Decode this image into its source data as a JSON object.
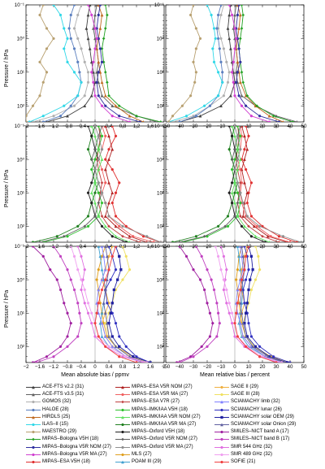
{
  "chart_data": {
    "type": "line",
    "rows": [
      {
        "name": "row-1"
      },
      {
        "name": "row-2"
      },
      {
        "name": "row-3"
      }
    ],
    "panels": [
      {
        "row": 0,
        "col": 0
      },
      {
        "row": 0,
        "col": 1
      },
      {
        "row": 1,
        "col": 0
      },
      {
        "row": 1,
        "col": 1
      },
      {
        "row": 2,
        "col": 0
      },
      {
        "row": 2,
        "col": 1
      }
    ],
    "xaxes": [
      {
        "label": "Mean absolute bias / ppmv",
        "xlim": [
          -2,
          2
        ],
        "ticks": [
          -2,
          -1.6,
          -1.2,
          -0.8,
          -0.4,
          0,
          0.4,
          0.8,
          1.2,
          1.6,
          2
        ],
        "tick_labels": [
          "−2",
          "−1.6",
          "−1.2",
          "−0.8",
          "−0.4",
          "0",
          "0.4",
          "0.8",
          "1.2",
          "1.6",
          "2"
        ]
      },
      {
        "label": "Mean relative bias / percent",
        "xlim": [
          -50,
          50
        ],
        "ticks": [
          -50,
          -40,
          -30,
          -20,
          -10,
          0,
          10,
          20,
          30,
          40,
          50
        ],
        "tick_labels": [
          "−50",
          "−40",
          "−30",
          "−20",
          "−10",
          "0",
          "10",
          "20",
          "30",
          "40",
          "50"
        ]
      }
    ],
    "yaxis": {
      "label": "Pressure / hPa",
      "scale": "log",
      "inverted": true,
      "ylim": [
        300,
        0.1
      ],
      "ticks": [
        0.1,
        1,
        10,
        100
      ],
      "tick_labels": [
        "10⁻¹",
        "10⁰",
        "10¹",
        "10²"
      ]
    },
    "pressure_levels": [
      0.1,
      0.2,
      0.5,
      1,
      2,
      5,
      10,
      20,
      50,
      100,
      200,
      300
    ],
    "series": [
      {
        "name": "ACE-FTS v2.2 (31)",
        "color": "#404040",
        "marker": "triangle",
        "row": 0,
        "abs": [
          -0.15,
          -0.2,
          -0.25,
          -0.2,
          -0.15,
          -0.1,
          -0.05,
          0,
          -0.1,
          -0.3,
          -0.8,
          -1.4
        ],
        "rel": [
          -3,
          -4,
          -5,
          -4,
          -3,
          -2,
          -1,
          0,
          -3,
          -10,
          -25,
          -40
        ]
      },
      {
        "name": "ACE-FTS v3.5 (31)",
        "color": "#606060",
        "marker": "triangle",
        "row": 0,
        "abs": [
          0.05,
          0,
          -0.05,
          0,
          0.05,
          0.1,
          0.05,
          0.1,
          0.2,
          0.5,
          1.2,
          1.8
        ],
        "rel": [
          1,
          0,
          -1,
          0,
          1,
          2,
          1,
          2,
          5,
          15,
          30,
          45
        ]
      },
      {
        "name": "GOMOS (32)",
        "color": "#b0b0b0",
        "marker": "circle",
        "row": 0,
        "abs": [
          -0.4,
          -0.5,
          -0.6,
          -0.5,
          -0.4,
          -0.3,
          -0.2,
          -0.2,
          -0.3,
          -0.6,
          -1.2,
          -1.8
        ],
        "rel": [
          -8,
          -10,
          -12,
          -10,
          -8,
          -6,
          -4,
          -5,
          -8,
          -18,
          -30,
          -45
        ]
      },
      {
        "name": "HALOE (28)",
        "color": "#5b7fbf",
        "marker": "circle",
        "row": 0,
        "abs": [
          -0.6,
          -0.7,
          -0.75,
          -0.7,
          -0.6,
          -0.5,
          -0.45,
          -0.4,
          -0.5,
          -0.7,
          -1.0,
          -1.5
        ],
        "rel": [
          -10,
          -12,
          -13,
          -12,
          -11,
          -10,
          -9,
          -9,
          -12,
          -18,
          -28,
          -40
        ]
      },
      {
        "name": "HIRDLS (25)",
        "color": "#c06a20",
        "marker": "triangle",
        "row": 0,
        "abs": [
          0.1,
          0.2,
          0.15,
          0.1,
          0.05,
          0.1,
          0.15,
          0.2,
          0.3,
          0.6,
          1.0,
          1.4
        ],
        "rel": [
          2,
          4,
          3,
          2,
          1,
          2,
          3,
          4,
          8,
          15,
          25,
          35
        ]
      },
      {
        "name": "ILAS–II (15)",
        "color": "#30d8e8",
        "marker": "circle",
        "row": 0,
        "abs": [
          -1.2,
          -1.0,
          -0.9,
          -0.8,
          -0.9,
          -0.8,
          -0.6,
          -0.4,
          -0.5,
          -0.9,
          -1.5,
          -1.9
        ],
        "rel": [
          -20,
          -17,
          -15,
          -14,
          -16,
          -15,
          -12,
          -9,
          -12,
          -22,
          -35,
          -48
        ]
      },
      {
        "name": "MAESTRO (29)",
        "color": "#b8a070",
        "marker": "circle",
        "row": 0,
        "abs": [
          -1.5,
          -1.6,
          -1.4,
          -1.2,
          -1.4,
          -1.6,
          -1.4,
          -1.5,
          -1.6,
          -1.8,
          -2.0,
          -2.0
        ],
        "rel": [
          -30,
          -32,
          -28,
          -25,
          -28,
          -30,
          -28,
          -29,
          -32,
          -38,
          -45,
          -48
        ]
      },
      {
        "name": "MIPAS–Bologna V5H (18)",
        "color": "#20a020",
        "marker": "diamond",
        "row": 0,
        "abs": [
          0.3,
          0.35,
          0.3,
          0.25,
          0.2,
          0.25,
          0.3,
          0.35,
          0.4,
          0.7,
          1.2,
          1.9
        ],
        "rel": [
          5,
          6,
          5,
          4,
          3,
          4,
          5,
          6,
          9,
          16,
          28,
          42
        ]
      },
      {
        "name": "MIPAS–Bologna V5R NOM (27)",
        "color": "#3030a0",
        "marker": "circle",
        "row": 0,
        "abs": [
          0.15,
          0.1,
          0.05,
          0.1,
          0.15,
          0.2,
          0.1,
          0.05,
          0.1,
          0.3,
          0.7,
          1.3
        ],
        "rel": [
          3,
          2,
          1,
          2,
          3,
          4,
          2,
          1,
          3,
          8,
          18,
          32
        ]
      },
      {
        "name": "MIPAS–Bologna V5R MA (27)",
        "color": "#d040d0",
        "marker": "circle",
        "row": 0,
        "abs": [
          -0.2,
          -0.1,
          0,
          0.05,
          0,
          -0.05,
          -0.1,
          -0.05,
          0,
          0.2,
          0.5,
          1.0
        ],
        "rel": [
          -4,
          -2,
          0,
          1,
          0,
          -1,
          -2,
          -1,
          0,
          5,
          12,
          25
        ]
      },
      {
        "name": "MIPAS–ESA V5H (18)",
        "color": "#e03030",
        "marker": "circle",
        "row": 1,
        "abs": [
          0.5,
          0.6,
          0.4,
          0.3,
          0.5,
          0.7,
          0.6,
          0.5,
          0.6,
          0.9,
          1.4,
          1.9
        ],
        "rel": [
          8,
          10,
          7,
          5,
          8,
          12,
          10,
          9,
          12,
          20,
          32,
          45
        ]
      },
      {
        "name": "MIPAS–ESA V5R NOM (27)",
        "color": "#b02020",
        "marker": "triangle",
        "row": 1,
        "abs": [
          0.3,
          0.4,
          0.5,
          0.4,
          0.3,
          0.4,
          0.5,
          0.4,
          0.3,
          0.6,
          1.0,
          1.5
        ],
        "rel": [
          5,
          7,
          9,
          7,
          5,
          7,
          9,
          7,
          6,
          14,
          24,
          38
        ]
      },
      {
        "name": "MIPAS–ESA V5R MA (27)",
        "color": "#f06060",
        "marker": "circle",
        "row": 1,
        "abs": [
          0.2,
          0.3,
          0.2,
          0.1,
          0.2,
          0.3,
          0.2,
          0.3,
          0.4,
          0.7,
          1.1,
          1.7
        ],
        "rel": [
          4,
          5,
          4,
          2,
          4,
          5,
          4,
          5,
          8,
          16,
          26,
          40
        ]
      },
      {
        "name": "MIPAS–ESA V7R (27)",
        "color": "#c04040",
        "marker": "diamond",
        "row": 1,
        "abs": [
          0.1,
          0.15,
          0.1,
          0.05,
          0.1,
          0.2,
          0.15,
          0.1,
          0.2,
          0.4,
          0.8,
          1.3
        ],
        "rel": [
          2,
          3,
          2,
          1,
          2,
          4,
          3,
          2,
          4,
          10,
          20,
          32
        ]
      },
      {
        "name": "MIPAS–IMK/IAA V5H (18)",
        "color": "#30c030",
        "marker": "circle",
        "row": 1,
        "abs": [
          0.1,
          0.2,
          0.1,
          0,
          -0.1,
          0,
          0.1,
          0.2,
          0.1,
          -0.2,
          -0.8,
          -1.5
        ],
        "rel": [
          2,
          4,
          2,
          0,
          -2,
          0,
          2,
          4,
          2,
          -5,
          -20,
          -38
        ]
      },
      {
        "name": "MIPAS–IMK/IAA V5R NOM (27)",
        "color": "#60e060",
        "marker": "triangle",
        "row": 1,
        "abs": [
          -0.1,
          0,
          0.1,
          0.2,
          0.1,
          0,
          -0.1,
          0,
          0.1,
          0.3,
          0.6,
          1.0
        ],
        "rel": [
          -2,
          0,
          2,
          4,
          2,
          0,
          -2,
          0,
          2,
          7,
          15,
          25
        ]
      },
      {
        "name": "MIPAS–IMK/IAA V5R MA (27)",
        "color": "#208020",
        "marker": "circle",
        "row": 1,
        "abs": [
          0,
          -0.1,
          -0.2,
          -0.1,
          0,
          0.1,
          0,
          -0.1,
          -0.2,
          -0.5,
          -1.1,
          -1.8
        ],
        "rel": [
          0,
          -2,
          -4,
          -2,
          0,
          2,
          0,
          -2,
          -5,
          -12,
          -28,
          -45
        ]
      },
      {
        "name": "MIPAS–Oxford V5H (18)",
        "color": "#202020",
        "marker": "circle",
        "row": 1,
        "abs": [
          -0.2,
          -0.1,
          0,
          0.1,
          0,
          -0.1,
          -0.2,
          -0.1,
          0,
          0.2,
          0.5,
          0.9
        ],
        "rel": [
          -4,
          -2,
          0,
          2,
          0,
          -2,
          -4,
          -2,
          0,
          5,
          12,
          22
        ]
      },
      {
        "name": "MIPAS–Oxford V5R NOM (27)",
        "color": "#606060",
        "marker": "diamond",
        "row": 1,
        "abs": [
          0.2,
          0.1,
          0,
          -0.1,
          0,
          0.1,
          0.2,
          0.1,
          0,
          -0.3,
          -0.9,
          -1.6
        ],
        "rel": [
          4,
          2,
          0,
          -2,
          0,
          2,
          4,
          2,
          0,
          -7,
          -22,
          -40
        ]
      },
      {
        "name": "MIPAS–Oxford V5R MA (27)",
        "color": "#909090",
        "marker": "circle",
        "row": 1,
        "abs": [
          0,
          0.1,
          0.2,
          0.1,
          0,
          0.1,
          0.2,
          0.3,
          0.4,
          0.8,
          1.5,
          1.9
        ],
        "rel": [
          0,
          2,
          4,
          2,
          0,
          2,
          4,
          6,
          9,
          18,
          35,
          48
        ]
      },
      {
        "name": "MLS (27)",
        "color": "#e0a020",
        "marker": "circle",
        "row": 2,
        "abs": [
          0.3,
          0.2,
          0.1,
          0.05,
          0.1,
          0.15,
          0.2,
          0.25,
          0.35,
          0.6,
          1.1,
          1.6
        ],
        "rel": [
          5,
          3,
          2,
          1,
          2,
          3,
          4,
          5,
          8,
          14,
          26,
          40
        ]
      },
      {
        "name": "POAM III (29)",
        "color": "#40a0d0",
        "marker": "triangle",
        "row": 2,
        "abs": [
          0.1,
          0.15,
          0.2,
          0.25,
          0.3,
          0.25,
          0.2,
          0.15,
          0.2,
          0.4,
          0.9,
          1.4
        ],
        "rel": [
          2,
          3,
          4,
          5,
          6,
          5,
          4,
          3,
          5,
          10,
          22,
          35
        ]
      },
      {
        "name": "SAGE II (29)",
        "color": "#f0b040",
        "marker": "circle",
        "row": 2,
        "abs": [
          0.5,
          0.4,
          0.3,
          0.2,
          0.3,
          0.4,
          0.3,
          0.2,
          0.3,
          0.5,
          0.9,
          1.5
        ],
        "rel": [
          9,
          7,
          5,
          4,
          5,
          7,
          5,
          4,
          6,
          12,
          22,
          37
        ]
      },
      {
        "name": "SAGE III (28)",
        "color": "#f0e060",
        "marker": "circle",
        "row": 2,
        "abs": [
          0.8,
          0.9,
          1.0,
          0.8,
          0.6,
          0.5,
          0.4,
          0.3,
          0.4,
          0.6,
          1.0,
          1.6
        ],
        "rel": [
          15,
          17,
          18,
          15,
          12,
          10,
          8,
          6,
          8,
          14,
          25,
          40
        ]
      },
      {
        "name": "SCIAMACHY limb (32)",
        "color": "#8080ff",
        "marker": "triangle",
        "row": 2,
        "abs": [
          0.2,
          0.25,
          0.3,
          0.2,
          0.1,
          0.05,
          0.1,
          0.2,
          0.3,
          0.5,
          0.9,
          1.4
        ],
        "rel": [
          4,
          5,
          6,
          4,
          2,
          1,
          2,
          4,
          6,
          12,
          22,
          34
        ]
      },
      {
        "name": "SCIAMACHY lunar (26)",
        "color": "#3030c0",
        "marker": "circle",
        "row": 2,
        "abs": [
          0.4,
          0.5,
          0.6,
          0.45,
          0.3,
          0.35,
          0.5,
          0.6,
          0.7,
          0.9,
          1.2,
          1.6
        ],
        "rel": [
          7,
          9,
          10,
          8,
          6,
          7,
          9,
          10,
          12,
          18,
          28,
          40
        ]
      },
      {
        "name": "SCIAMACHY solar OEM (29)",
        "color": "#2020a0",
        "marker": "square",
        "row": 2,
        "abs": [
          0.6,
          0.7,
          0.75,
          0.65,
          0.55,
          0.5,
          0.45,
          0.4,
          0.5,
          0.7,
          1.1,
          1.6
        ],
        "rel": [
          10,
          12,
          13,
          11,
          10,
          9,
          8,
          7,
          9,
          15,
          25,
          38
        ]
      },
      {
        "name": "SCIAMACHY solar Onion (29)",
        "color": "#6060a0",
        "marker": "triangle",
        "row": 2,
        "abs": [
          0.3,
          0.35,
          0.4,
          0.35,
          0.3,
          0.25,
          0.3,
          0.35,
          0.4,
          0.6,
          1.0,
          1.5
        ],
        "rel": [
          5,
          6,
          7,
          6,
          5,
          4,
          5,
          6,
          8,
          13,
          24,
          36
        ]
      },
      {
        "name": "SMILES–NICT band A (17)",
        "color": "#a020a0",
        "marker": "circle",
        "row": 2,
        "abs": [
          -1.8,
          -1.5,
          -1.3,
          -1.1,
          -1.0,
          -0.9,
          -0.8,
          -0.7,
          -0.8,
          -1.0,
          -1.4,
          -1.8
        ],
        "rel": [
          -40,
          -35,
          -30,
          -25,
          -22,
          -20,
          -18,
          -16,
          -18,
          -24,
          -32,
          -42
        ]
      },
      {
        "name": "SMILES–NICT band B (17)",
        "color": "#c040c0",
        "marker": "circle",
        "row": 2,
        "abs": [
          -1.2,
          -1.0,
          -0.8,
          -0.7,
          -0.6,
          -0.5,
          -0.45,
          -0.4,
          -0.5,
          -0.8,
          -1.2,
          -1.7
        ],
        "rel": [
          -28,
          -24,
          -20,
          -17,
          -15,
          -13,
          -12,
          -11,
          -13,
          -20,
          -30,
          -40
        ]
      },
      {
        "name": "SMR 544 GHz (32)",
        "color": "#e070e0",
        "marker": "circle",
        "row": 2,
        "abs": [
          -0.5,
          -0.4,
          -0.3,
          -0.35,
          -0.4,
          -0.3,
          -0.2,
          -0.1,
          0,
          0.3,
          0.8,
          1.4
        ],
        "rel": [
          -10,
          -8,
          -6,
          -7,
          -8,
          -6,
          -4,
          -2,
          0,
          7,
          18,
          32
        ]
      },
      {
        "name": "SMR 489 GHz (32)",
        "color": "#f0a0f0",
        "marker": "circle",
        "row": 2,
        "abs": [
          -0.7,
          -0.6,
          -0.5,
          -0.4,
          -0.3,
          -0.2,
          -0.1,
          0,
          0.1,
          0.4,
          0.9,
          1.5
        ],
        "rel": [
          -14,
          -12,
          -10,
          -8,
          -6,
          -4,
          -2,
          0,
          2,
          9,
          20,
          34
        ]
      },
      {
        "name": "SOFIE (21)",
        "color": "#f04040",
        "marker": "circle",
        "row": 2,
        "abs": [
          0.6,
          0.5,
          0.4,
          0.3,
          0.2,
          0.1,
          0.05,
          0,
          0.1,
          0.3,
          0.7,
          1.2
        ],
        "rel": [
          10,
          8,
          7,
          5,
          4,
          2,
          1,
          0,
          2,
          8,
          18,
          30
        ]
      }
    ],
    "legend": {
      "placement": "bottom",
      "columns": 3
    },
    "grid": false
  }
}
